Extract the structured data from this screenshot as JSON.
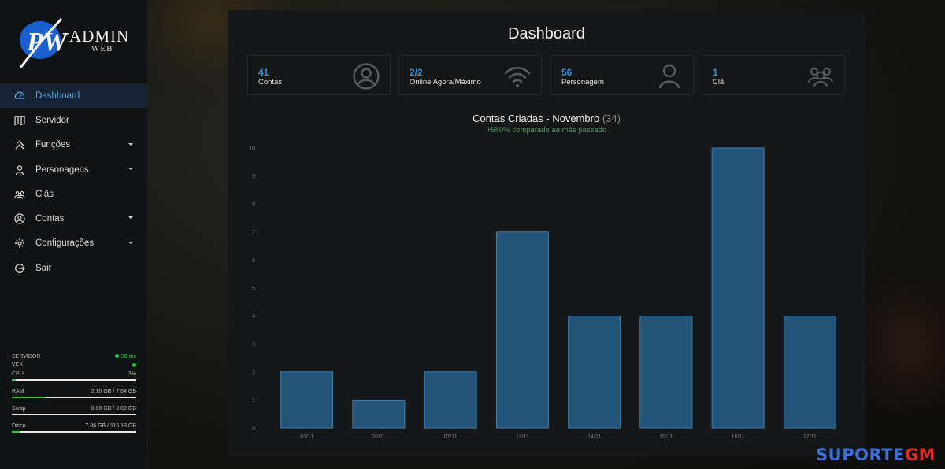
{
  "brand": {
    "admin": "ADMIN",
    "web": "WEB",
    "monogram": "PW"
  },
  "menu": [
    {
      "label": "Dashboard",
      "icon": "gauge-icon",
      "active": true,
      "caret": false
    },
    {
      "label": "Servidor",
      "icon": "map-icon",
      "active": false,
      "caret": false
    },
    {
      "label": "Funções",
      "icon": "tools-icon",
      "active": false,
      "caret": true
    },
    {
      "label": "Personagens",
      "icon": "user-icon",
      "active": false,
      "caret": true
    },
    {
      "label": "Clãs",
      "icon": "group-icon",
      "active": false,
      "caret": false
    },
    {
      "label": "Contas",
      "icon": "user-circle-icon",
      "active": false,
      "caret": true
    },
    {
      "label": "Configurações",
      "icon": "gear-icon",
      "active": false,
      "caret": true
    },
    {
      "label": "Sair",
      "icon": "logout-icon",
      "active": false,
      "caret": false
    }
  ],
  "server": {
    "label": "SERVIDOR",
    "ping": "39 ms",
    "vex_label": "VEX",
    "cpu": {
      "label": "CPU",
      "value": "3%",
      "fraction": 0.03
    },
    "ram": {
      "label": "RAM",
      "value": "2.10 GB / 7.64 GB",
      "fraction": 0.27
    },
    "swap": {
      "label": "Swap",
      "value": "0.00 GB / 8.00 GB",
      "fraction": 0.0
    },
    "disk": {
      "label": "Disco",
      "value": "7.86 GB / 115.13 GB",
      "fraction": 0.07
    }
  },
  "dashboard": {
    "title": "Dashboard",
    "cards": [
      {
        "value": "41",
        "label": "Contas",
        "icon": "user-circle-icon"
      },
      {
        "value": "2/2",
        "label": "Online Agora/Máximo",
        "icon": "wifi-icon"
      },
      {
        "value": "56",
        "label": "Personagem",
        "icon": "user-icon"
      },
      {
        "value": "1",
        "label": "Clã",
        "icon": "group-icon"
      }
    ]
  },
  "chart_data": {
    "type": "bar",
    "title": "Contas Criadas - Novembro",
    "title_count": "(34)",
    "subtitle": "+580% comparado ao mês passado",
    "categories": [
      "03/11",
      "05/11",
      "07/11",
      "13/11",
      "14/11",
      "15/11",
      "16/11",
      "17/11"
    ],
    "values": [
      2,
      1,
      2,
      7,
      4,
      4,
      10,
      4
    ],
    "ylim": [
      0,
      10
    ],
    "yticks": [
      "0",
      "1",
      "2",
      "3",
      "4",
      "5",
      "6",
      "7",
      "8",
      "9",
      "10"
    ],
    "grid": false,
    "bar_color": "#235479",
    "bar_edge": "#3a7fb5"
  },
  "watermark": {
    "part1": "SUPORTE",
    "part2": "GM"
  }
}
